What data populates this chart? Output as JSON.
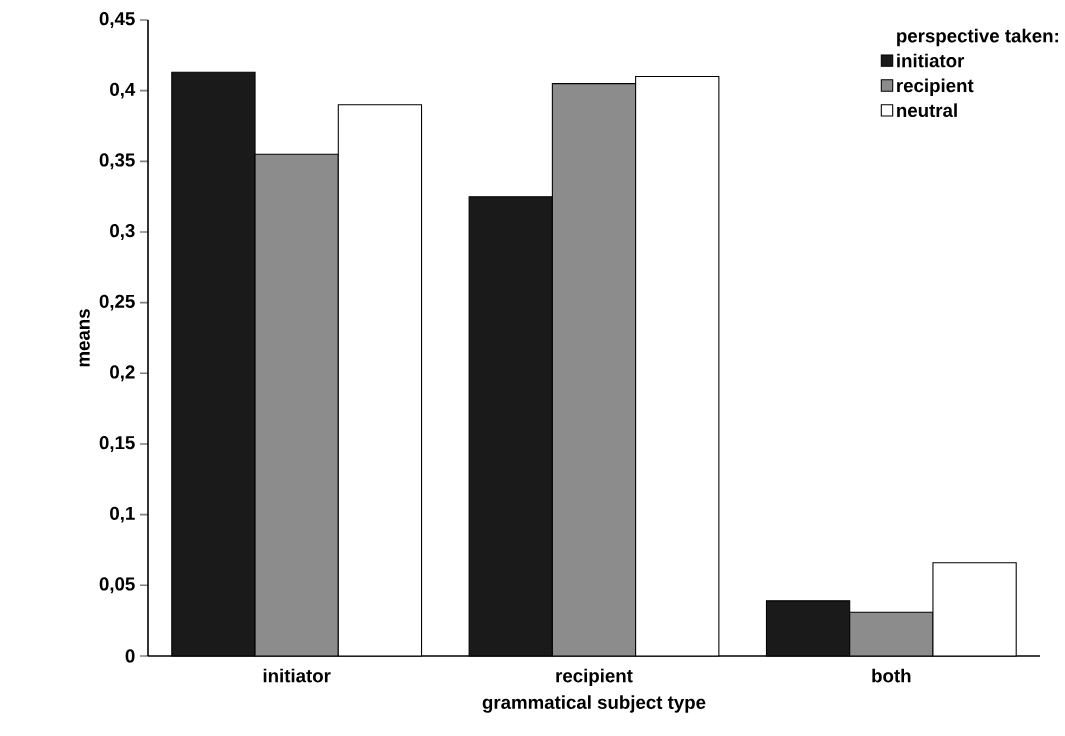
{
  "chart_data": {
    "type": "bar",
    "xlabel": "grammatical subject type",
    "ylabel": "means",
    "legend_title": "perspective taken:",
    "categories": [
      "initiator",
      "recipient",
      "both"
    ],
    "series": [
      {
        "name": "initiator",
        "color": "#1a1a1a",
        "values": [
          0.413,
          0.325,
          0.039
        ]
      },
      {
        "name": "recipient",
        "color": "#8c8c8c",
        "values": [
          0.355,
          0.405,
          0.031
        ]
      },
      {
        "name": "neutral",
        "color": "#ffffff",
        "values": [
          0.39,
          0.41,
          0.066
        ]
      }
    ],
    "ylim": [
      0,
      0.45
    ],
    "yticks": [
      0,
      {
        "value": 0.05,
        "label": "0,05"
      },
      {
        "value": 0.1,
        "label": "0,1"
      },
      {
        "value": 0.15,
        "label": "0,15"
      },
      {
        "value": 0.2,
        "label": "0,2"
      },
      {
        "value": 0.25,
        "label": "0,25"
      },
      {
        "value": 0.3,
        "label": "0,3"
      },
      {
        "value": 0.35,
        "label": "0,35"
      },
      {
        "value": 0.4,
        "label": "0,4"
      },
      {
        "value": 0.45,
        "label": "0,45"
      }
    ],
    "legend": "top right"
  }
}
